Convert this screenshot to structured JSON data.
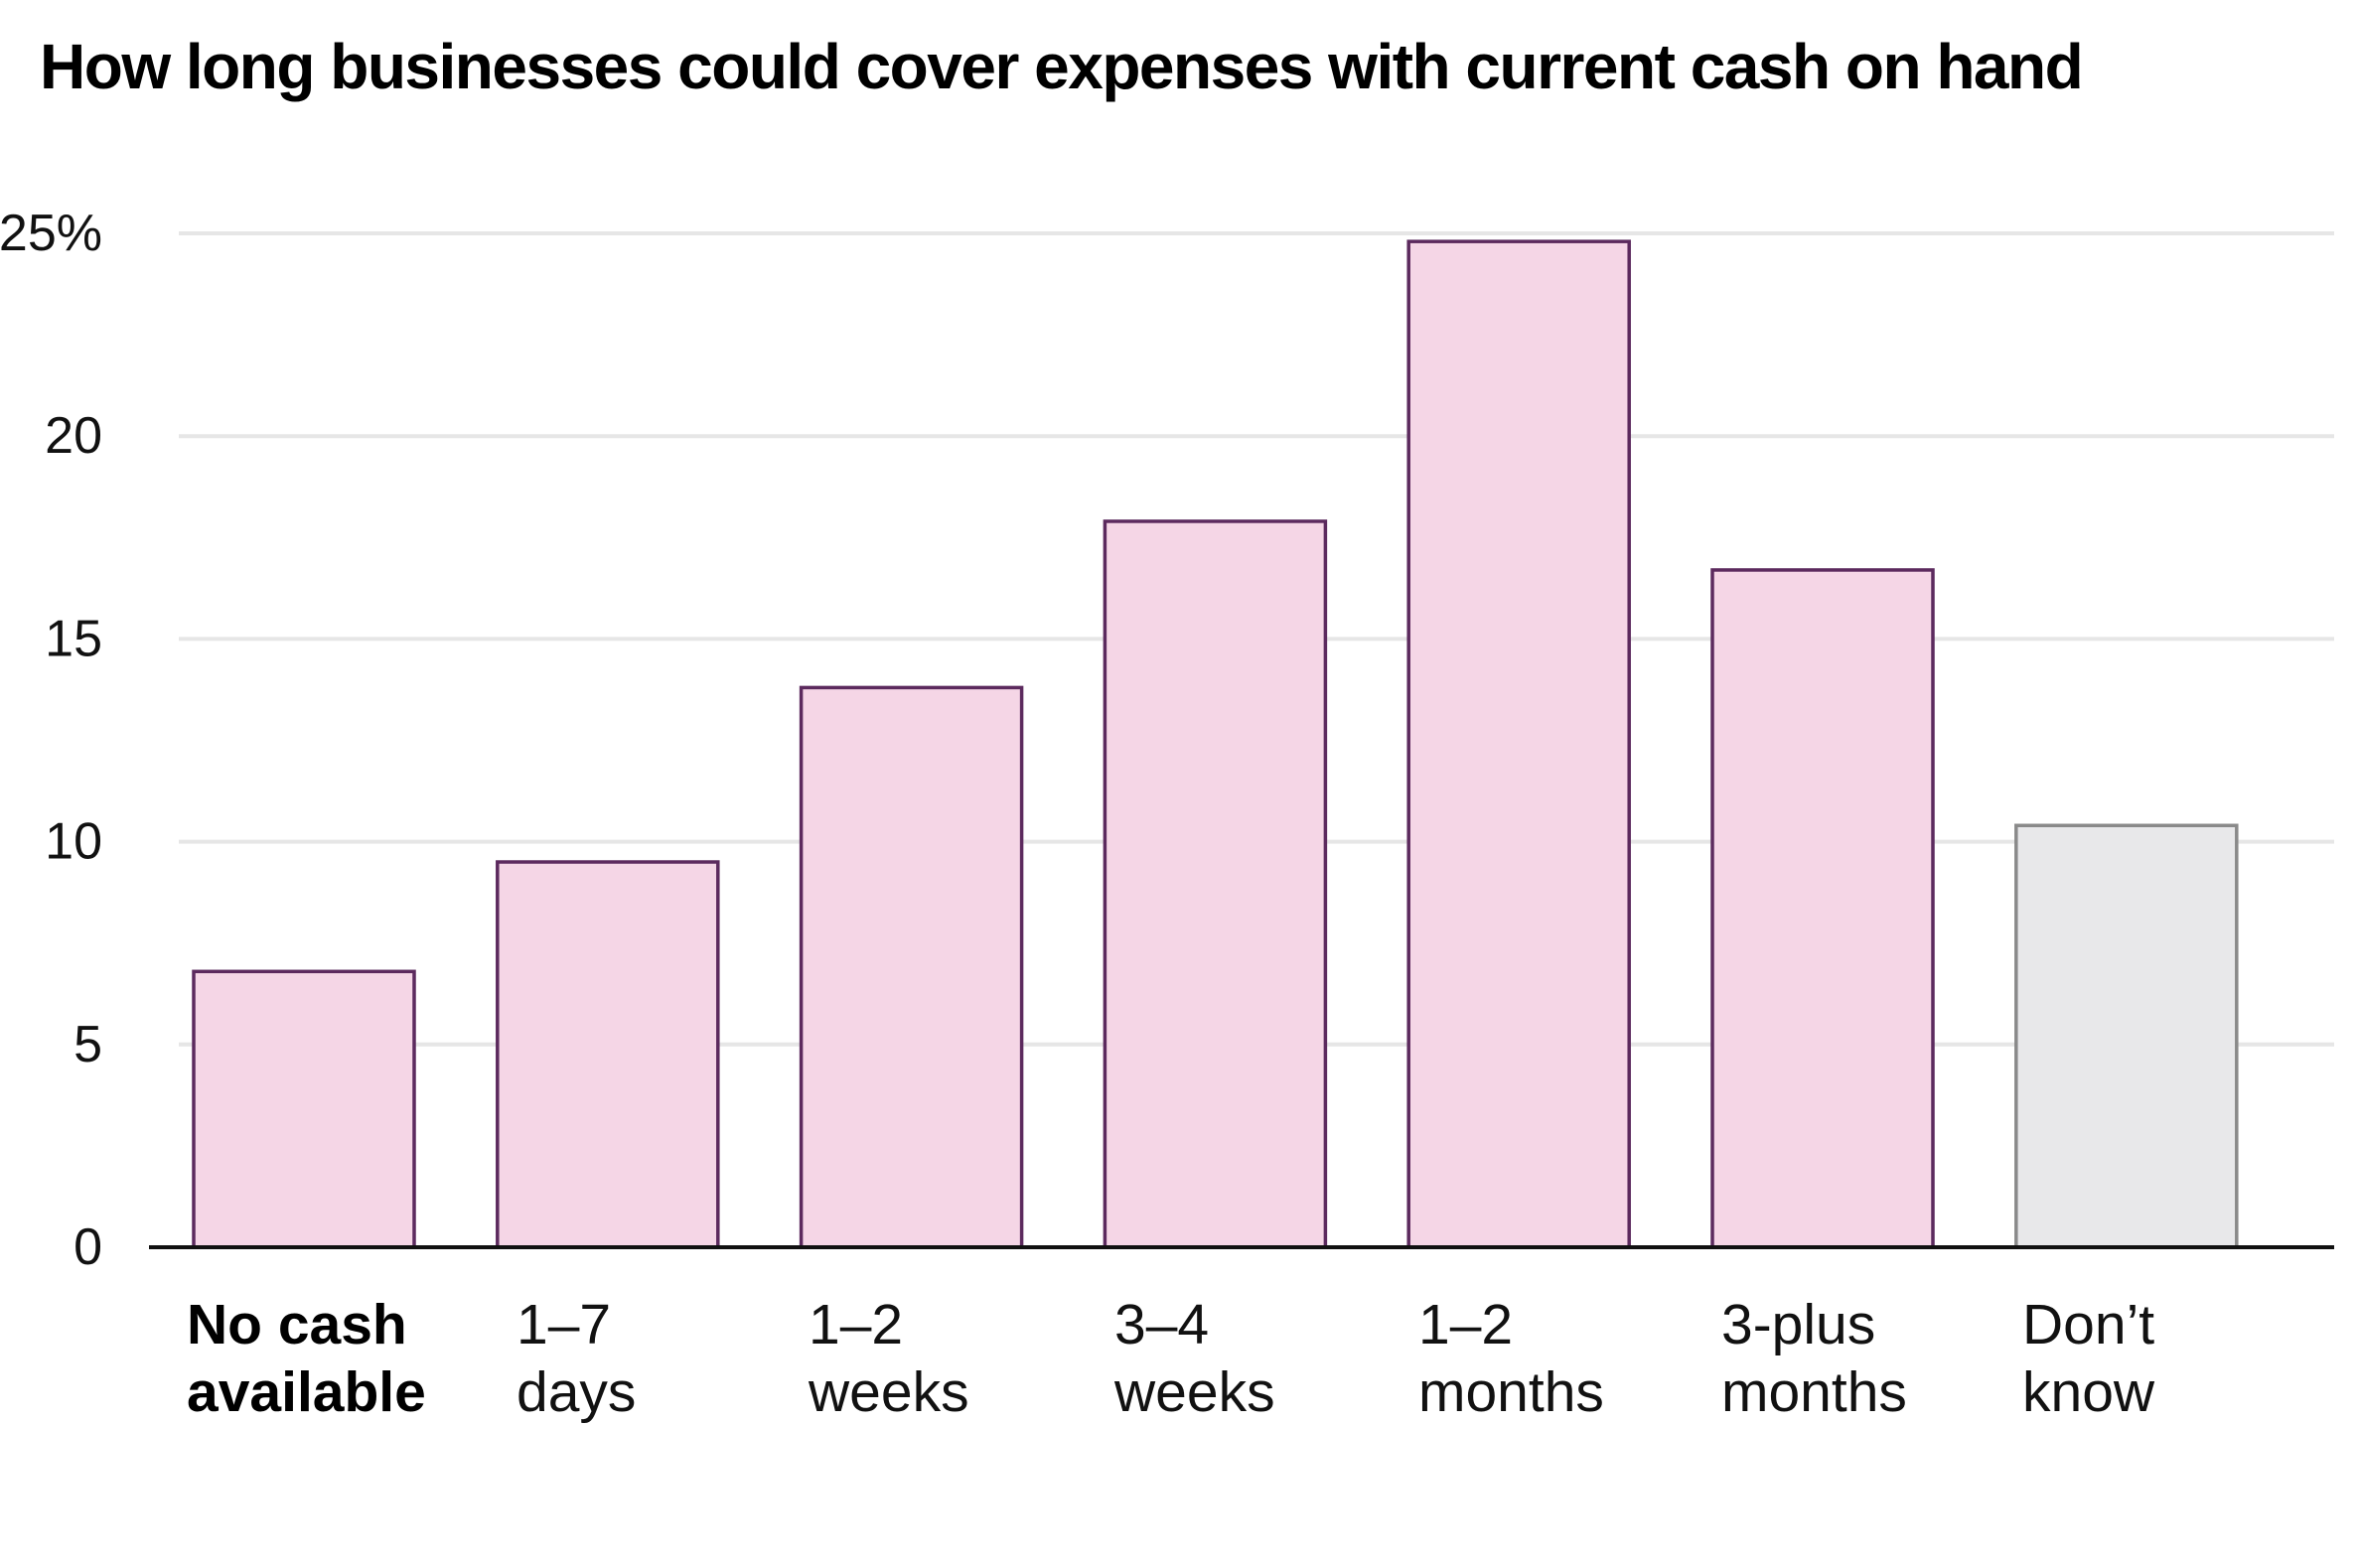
{
  "chart_data": {
    "type": "bar",
    "title": "How long businesses could cover expenses with current cash on hand",
    "categories": [
      [
        "No cash",
        "available"
      ],
      [
        "1–7",
        "days"
      ],
      [
        "1–2",
        "weeks"
      ],
      [
        "3–4",
        "weeks"
      ],
      [
        "1–2",
        "months"
      ],
      [
        "3-plus",
        "months"
      ],
      [
        "Don’t",
        "know"
      ]
    ],
    "values": [
      6.8,
      9.5,
      13.8,
      17.9,
      24.8,
      16.7,
      10.4
    ],
    "ylim": [
      0,
      25
    ],
    "yticks": [
      0,
      5,
      10,
      15,
      20,
      25
    ],
    "ytick_labels": [
      "0",
      "5",
      "10",
      "15",
      "20",
      "25%"
    ],
    "grid": true,
    "highlight_category": 0,
    "colors": {
      "bar_fill": "#f5d6e6",
      "bar_stroke": "#5c2a5e",
      "unknown_fill": "#e8e8ea",
      "unknown_stroke": "#8a8a8a",
      "grid": "#e6e6e6",
      "axis": "#111111"
    }
  }
}
